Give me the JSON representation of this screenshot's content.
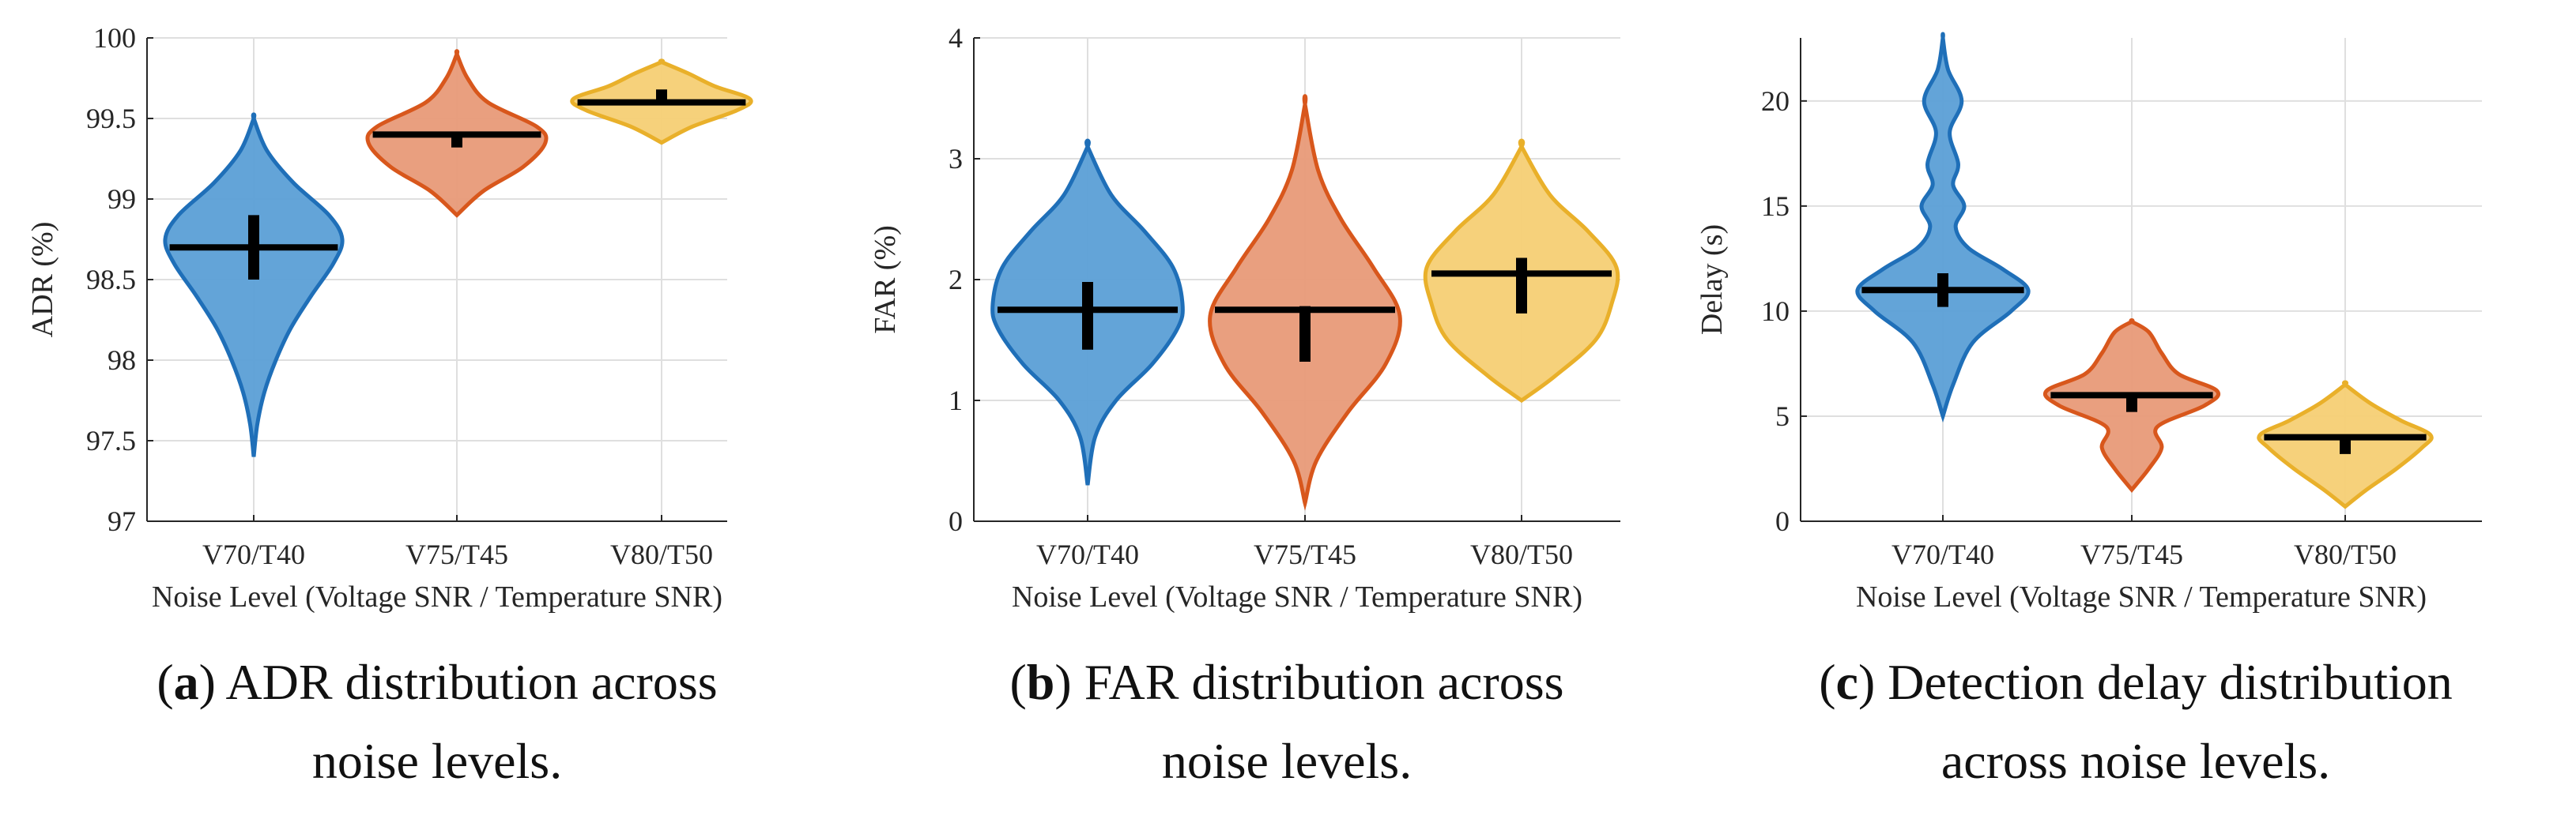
{
  "chart_data": [
    {
      "type": "violin",
      "ylabel": "ADR (%)",
      "xlabel": "Noise Level (Voltage SNR / Temperature SNR)",
      "ylim": [
        97,
        100
      ],
      "yticks": [
        97,
        97.5,
        98,
        98.5,
        99,
        99.5,
        100
      ],
      "ytick_labels": [
        "97",
        "97.5",
        "98",
        "98.5",
        "99",
        "99.5",
        "100"
      ],
      "categories": [
        "V70/T40",
        "V75/T45",
        "V80/T50"
      ],
      "violins": [
        {
          "median": 98.7,
          "q1": 98.5,
          "q3": 98.9,
          "min": 97.4,
          "max": 99.5,
          "profile": [
            [
              97.4,
              0.0
            ],
            [
              97.6,
              0.04
            ],
            [
              97.8,
              0.12
            ],
            [
              98.0,
              0.25
            ],
            [
              98.2,
              0.42
            ],
            [
              98.4,
              0.65
            ],
            [
              98.6,
              0.9
            ],
            [
              98.75,
              1.0
            ],
            [
              98.9,
              0.85
            ],
            [
              99.1,
              0.45
            ],
            [
              99.3,
              0.15
            ],
            [
              99.5,
              0.0
            ]
          ]
        },
        {
          "median": 99.4,
          "q1": 99.32,
          "q3": 99.4,
          "min": 98.9,
          "max": 99.9,
          "profile": [
            [
              98.9,
              0.0
            ],
            [
              99.05,
              0.3
            ],
            [
              99.2,
              0.75
            ],
            [
              99.35,
              1.0
            ],
            [
              99.45,
              0.9
            ],
            [
              99.6,
              0.35
            ],
            [
              99.75,
              0.12
            ],
            [
              99.9,
              0.0
            ]
          ]
        },
        {
          "median": 99.6,
          "q1": 99.6,
          "q3": 99.68,
          "min": 99.35,
          "max": 99.85,
          "profile": [
            [
              99.35,
              0.0
            ],
            [
              99.45,
              0.35
            ],
            [
              99.55,
              0.85
            ],
            [
              99.62,
              1.0
            ],
            [
              99.7,
              0.6
            ],
            [
              99.78,
              0.3
            ],
            [
              99.85,
              0.0
            ]
          ]
        }
      ]
    },
    {
      "type": "violin",
      "ylabel": "FAR (%)",
      "xlabel": "Noise Level (Voltage SNR / Temperature SNR)",
      "ylim": [
        0,
        4
      ],
      "yticks": [
        0,
        1,
        2,
        3,
        4
      ],
      "ytick_labels": [
        "0",
        "1",
        "2",
        "3",
        "4"
      ],
      "categories": [
        "V70/T40",
        "V75/T45",
        "V80/T50"
      ],
      "violins": [
        {
          "median": 1.75,
          "q1": 1.42,
          "q3": 1.98,
          "min": 0.3,
          "max": 3.1,
          "profile": [
            [
              0.3,
              0.0
            ],
            [
              0.7,
              0.08
            ],
            [
              1.0,
              0.3
            ],
            [
              1.3,
              0.68
            ],
            [
              1.6,
              0.95
            ],
            [
              1.8,
              1.0
            ],
            [
              2.1,
              0.9
            ],
            [
              2.4,
              0.6
            ],
            [
              2.7,
              0.25
            ],
            [
              3.1,
              0.0
            ]
          ]
        },
        {
          "median": 1.75,
          "q1": 1.32,
          "q3": 1.78,
          "min": 0.15,
          "max": 3.45,
          "profile": [
            [
              0.15,
              0.0
            ],
            [
              0.5,
              0.12
            ],
            [
              0.9,
              0.45
            ],
            [
              1.3,
              0.85
            ],
            [
              1.7,
              1.0
            ],
            [
              2.1,
              0.72
            ],
            [
              2.5,
              0.38
            ],
            [
              2.9,
              0.14
            ],
            [
              3.45,
              0.0
            ]
          ]
        },
        {
          "median": 2.05,
          "q1": 1.72,
          "q3": 2.18,
          "min": 1.0,
          "max": 3.1,
          "profile": [
            [
              1.0,
              0.0
            ],
            [
              1.2,
              0.35
            ],
            [
              1.5,
              0.78
            ],
            [
              1.8,
              0.95
            ],
            [
              2.1,
              1.0
            ],
            [
              2.4,
              0.7
            ],
            [
              2.7,
              0.3
            ],
            [
              3.1,
              0.0
            ]
          ]
        }
      ]
    },
    {
      "type": "violin",
      "ylabel": "Delay (s)",
      "xlabel": "Noise Level (Voltage SNR / Temperature SNR)",
      "ylim": [
        0,
        23
      ],
      "yticks": [
        0,
        5,
        10,
        15,
        20
      ],
      "ytick_labels": [
        "0",
        "5",
        "10",
        "15",
        "20"
      ],
      "categories": [
        "V70/T40",
        "V75/T45",
        "V80/T50"
      ],
      "violins": [
        {
          "median": 11,
          "q1": 10.2,
          "q3": 11.8,
          "min": 5,
          "max": 23,
          "profile": [
            [
              5,
              0.0
            ],
            [
              6.5,
              0.12
            ],
            [
              8.5,
              0.35
            ],
            [
              10,
              0.8
            ],
            [
              11,
              1.0
            ],
            [
              12,
              0.7
            ],
            [
              13,
              0.3
            ],
            [
              14,
              0.15
            ],
            [
              15,
              0.25
            ],
            [
              16,
              0.12
            ],
            [
              17,
              0.18
            ],
            [
              18.5,
              0.08
            ],
            [
              20,
              0.22
            ],
            [
              21.5,
              0.06
            ],
            [
              23,
              0.0
            ]
          ]
        },
        {
          "median": 6,
          "q1": 5.2,
          "q3": 6.0,
          "min": 1.5,
          "max": 9.5,
          "profile": [
            [
              1.5,
              0.0
            ],
            [
              2.5,
              0.2
            ],
            [
              3.5,
              0.35
            ],
            [
              4.5,
              0.3
            ],
            [
              5.5,
              0.85
            ],
            [
              6.2,
              1.0
            ],
            [
              7,
              0.55
            ],
            [
              8,
              0.35
            ],
            [
              9,
              0.2
            ],
            [
              9.5,
              0.0
            ]
          ]
        },
        {
          "median": 4,
          "q1": 3.2,
          "q3": 4.0,
          "min": 0.7,
          "max": 6.5,
          "profile": [
            [
              0.7,
              0.0
            ],
            [
              1.5,
              0.25
            ],
            [
              2.5,
              0.6
            ],
            [
              3.5,
              0.9
            ],
            [
              4.1,
              1.0
            ],
            [
              4.8,
              0.65
            ],
            [
              5.6,
              0.3
            ],
            [
              6.5,
              0.0
            ]
          ]
        }
      ]
    }
  ],
  "series_colors": {
    "V70/T40": {
      "fill": "#5b9fd6",
      "stroke": "#1f6fb8"
    },
    "V75/T45": {
      "fill": "#e89a78",
      "stroke": "#d8571c"
    },
    "V80/T50": {
      "fill": "#f5cf74",
      "stroke": "#e9b02a"
    }
  },
  "captions": [
    {
      "letter": "a",
      "line1": "ADR distribution across",
      "line2": "noise levels."
    },
    {
      "letter": "b",
      "line1": "FAR distribution across",
      "line2": "noise levels."
    },
    {
      "letter": "c",
      "line1": "Detection delay distribution",
      "line2": "across noise levels."
    }
  ]
}
